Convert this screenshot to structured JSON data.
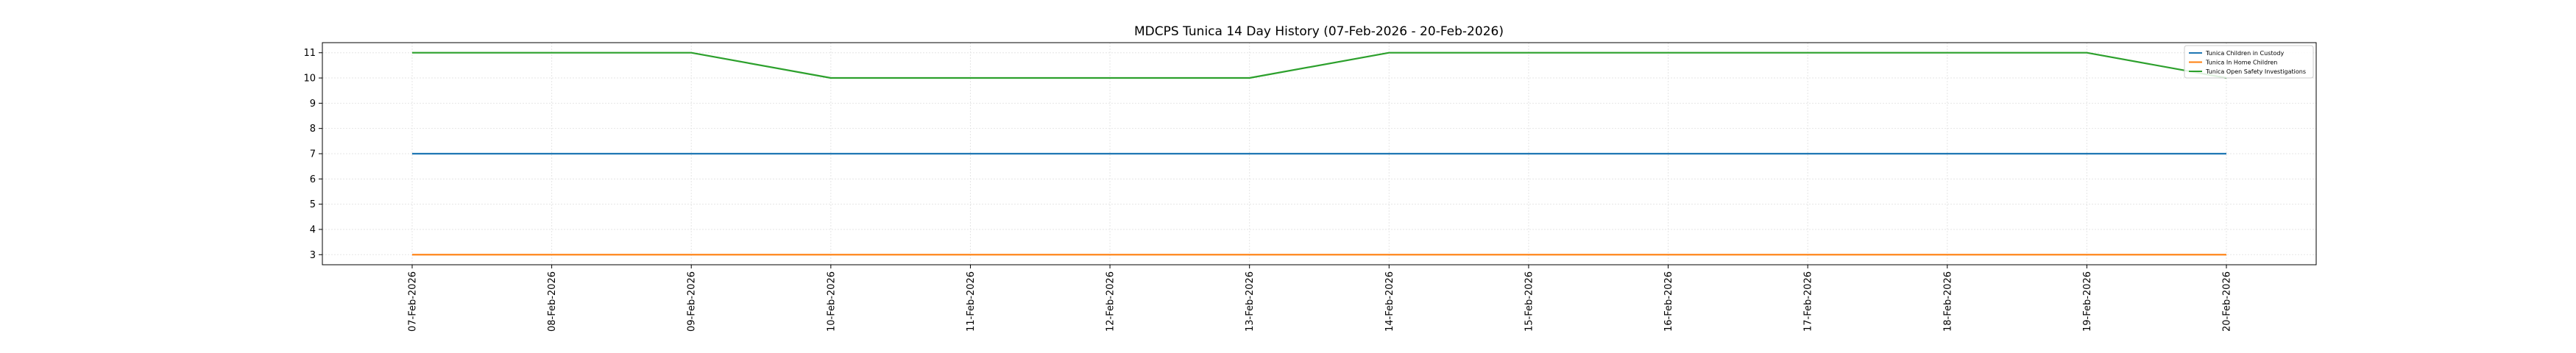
{
  "chart_data": {
    "type": "line",
    "title": "MDCPS Tunica 14 Day History (07-Feb-2026 - 20-Feb-2026)",
    "xlabel": "",
    "ylabel": "",
    "x": [
      "07-Feb-2026",
      "08-Feb-2026",
      "09-Feb-2026",
      "10-Feb-2026",
      "11-Feb-2026",
      "12-Feb-2026",
      "13-Feb-2026",
      "14-Feb-2026",
      "15-Feb-2026",
      "16-Feb-2026",
      "17-Feb-2026",
      "18-Feb-2026",
      "19-Feb-2026",
      "20-Feb-2026"
    ],
    "yticks": [
      3,
      4,
      5,
      6,
      7,
      8,
      9,
      10,
      11
    ],
    "ylim": [
      2.6,
      11.4
    ],
    "grid": true,
    "legend_position": "top-right",
    "series": [
      {
        "name": "Tunica Children in Custody",
        "color": "#1f77b4",
        "values": [
          7,
          7,
          7,
          7,
          7,
          7,
          7,
          7,
          7,
          7,
          7,
          7,
          7,
          7
        ]
      },
      {
        "name": "Tunica In Home Children",
        "color": "#ff7f0e",
        "values": [
          3,
          3,
          3,
          3,
          3,
          3,
          3,
          3,
          3,
          3,
          3,
          3,
          3,
          3
        ]
      },
      {
        "name": "Tunica Open Safety Investigations",
        "color": "#2ca02c",
        "values": [
          11,
          11,
          11,
          10,
          10,
          10,
          10,
          11,
          11,
          11,
          11,
          11,
          11,
          10
        ]
      }
    ]
  }
}
